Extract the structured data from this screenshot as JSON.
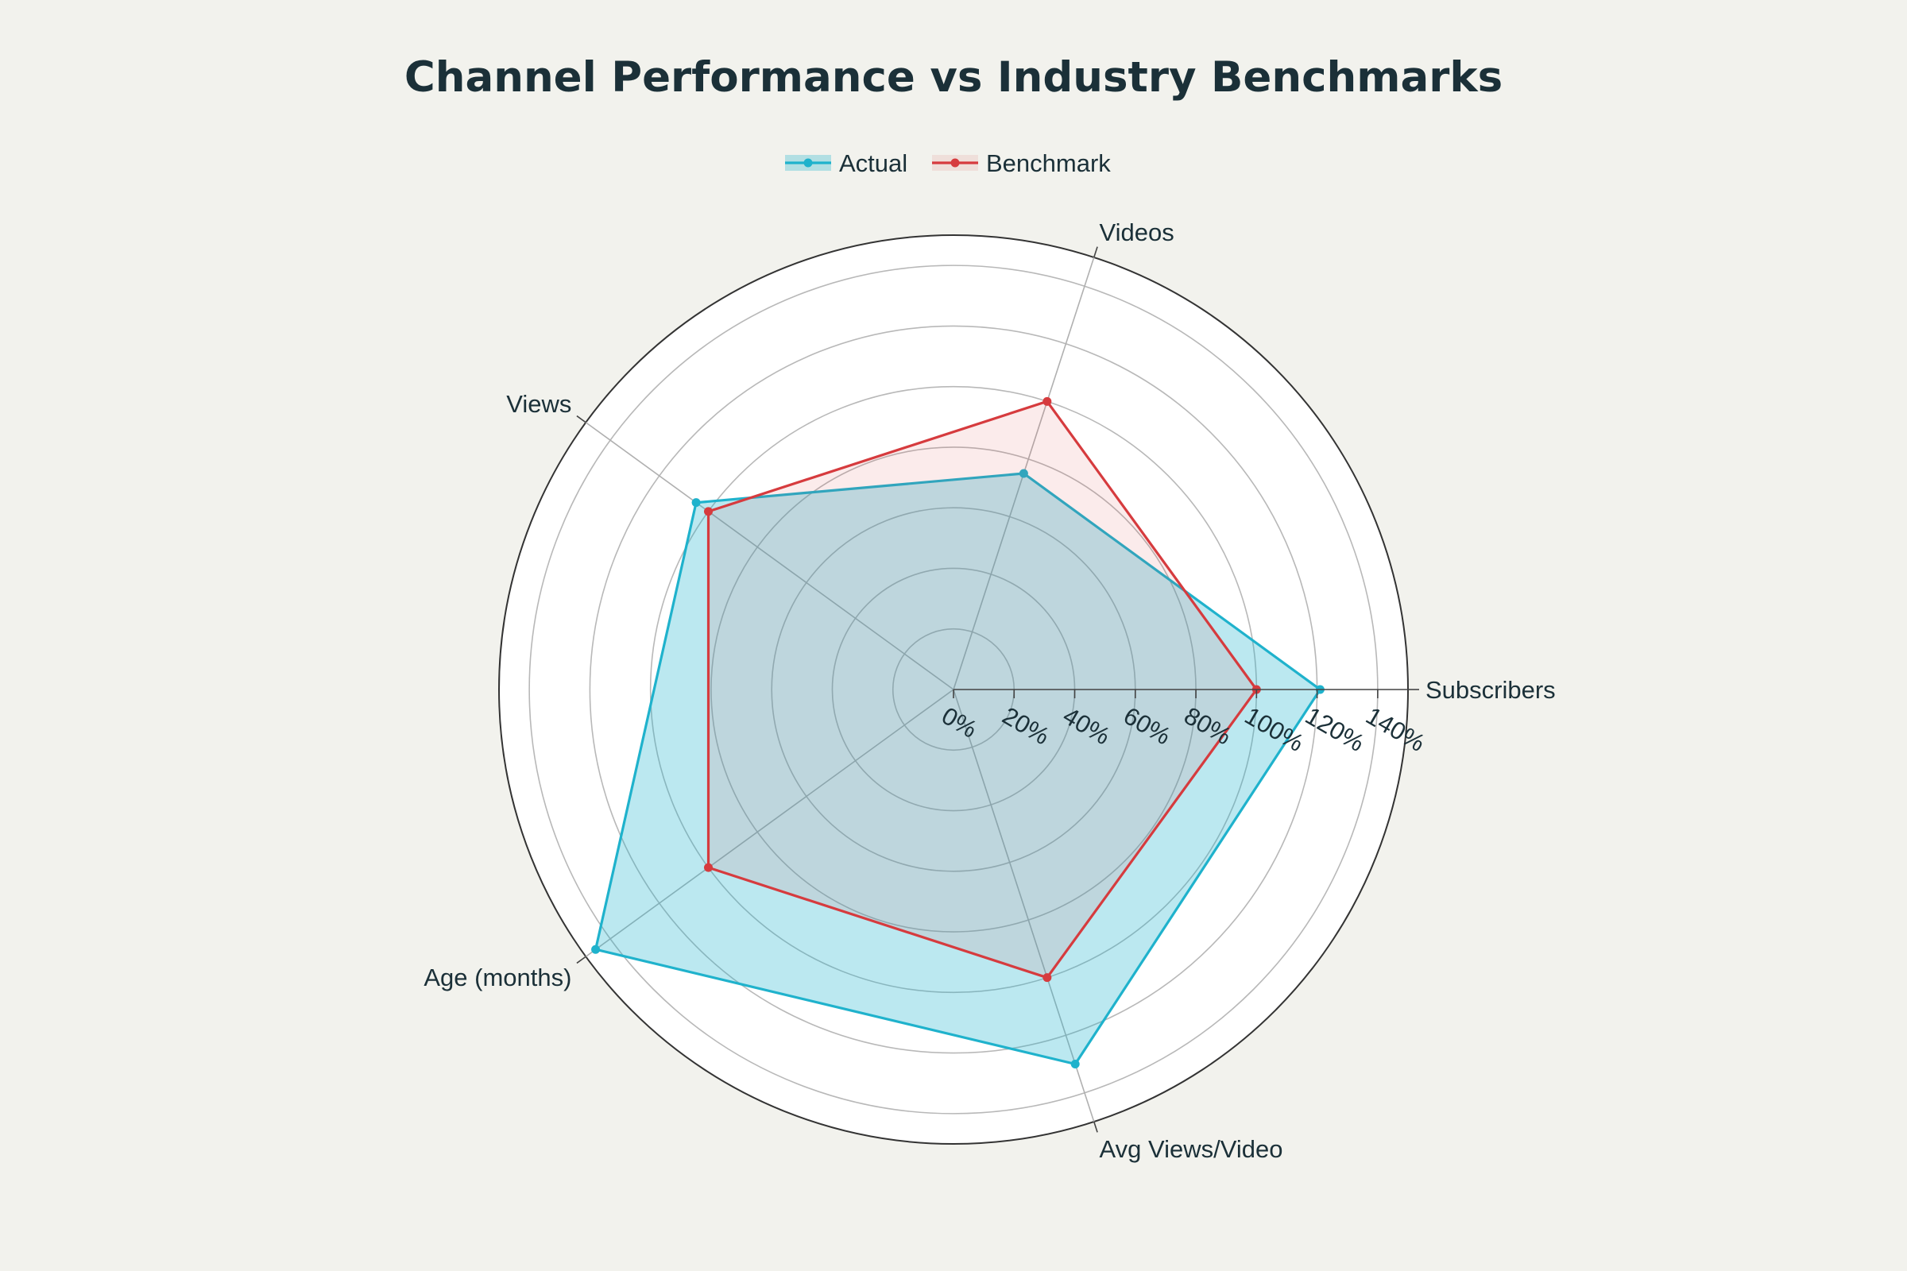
{
  "chart_data": {
    "type": "radar",
    "title": "Channel Performance vs Industry Benchmarks",
    "axes": [
      "Subscribers",
      "Videos",
      "Views",
      "Age (months)",
      "Avg Views/Video"
    ],
    "radial_ticks": [
      "0%",
      "20%",
      "40%",
      "60%",
      "80%",
      "100%",
      "120%",
      "140%"
    ],
    "radial_range": [
      0,
      150
    ],
    "legend_position": "top-center",
    "series": [
      {
        "name": "Actual",
        "color": "#1fb2cc",
        "fill": "rgba(31,178,204,0.30)",
        "values": [
          121,
          75,
          105,
          146,
          130
        ]
      },
      {
        "name": "Benchmark",
        "color": "#d63b3e",
        "fill": "rgba(214,59,62,0.10)",
        "values": [
          100,
          100,
          100,
          100,
          100
        ]
      }
    ]
  }
}
